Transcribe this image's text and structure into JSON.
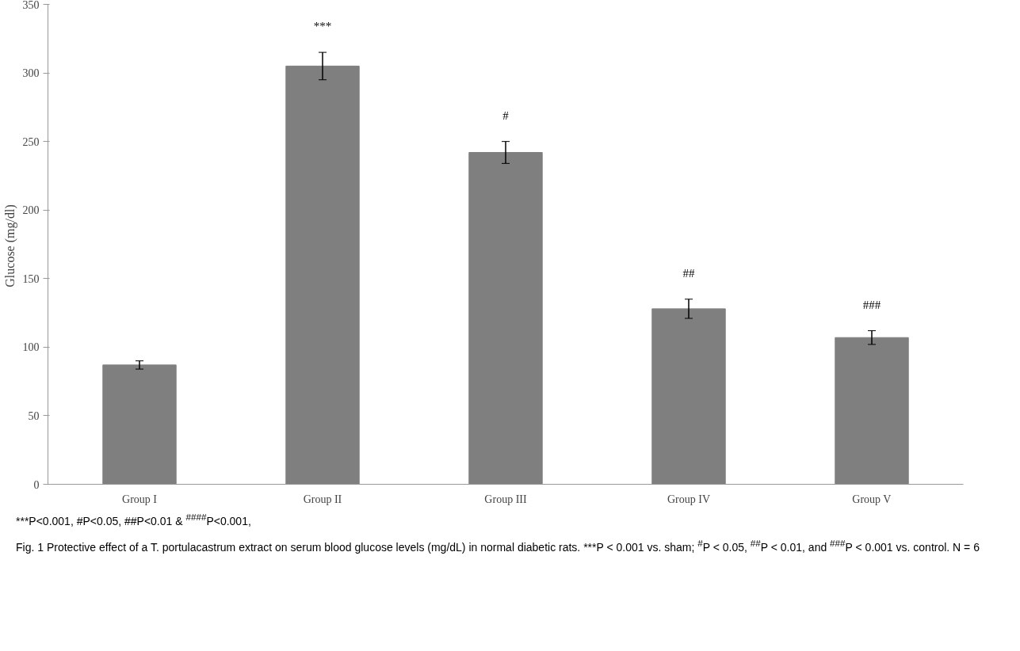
{
  "chart_data": {
    "type": "bar",
    "ylabel": "Glucose  (mg/dl)",
    "categories": [
      "Group I",
      "Group II",
      "Group III",
      "Group IV",
      "Group V"
    ],
    "values": [
      87,
      305,
      242,
      128,
      107
    ],
    "errors": [
      3,
      10,
      8,
      7,
      5
    ],
    "color": "#7f7f7f",
    "ylim": [
      0,
      350
    ],
    "yticks": [
      0,
      50,
      100,
      150,
      200,
      250,
      300,
      350
    ],
    "grid": false,
    "value_labels": [
      null,
      "***",
      "#",
      "##",
      "###"
    ],
    "annotations": [
      "***P<0.001, #P<0.05, ##P<0.01 &  $^{####}$P<0.001,",
      "Fig. 1  Protective effect of a T. portulacastrum extract on serum blood glucose levels (mg/dL) in normal diabetic rats. ***P < 0.001 vs. sham; $^{#}$P < 0.05, $^{##}$P < 0.01, and $^{###}$P < 0.001 vs. control. N = 6"
    ]
  }
}
